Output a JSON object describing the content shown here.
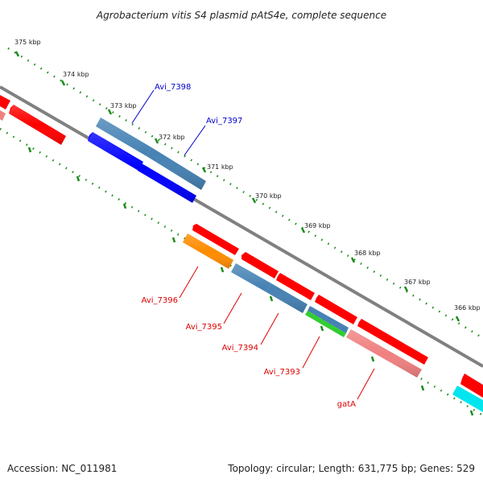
{
  "title": "Agrobacterium vitis S4 plasmid pAtS4e, complete sequence",
  "footer": {
    "accession": "Accession: NC_011981",
    "summary": "Topology: circular; Length: 631,775 bp; Genes: 529"
  },
  "scale_ticks": [
    "375 kbp",
    "374 kbp",
    "373 kbp",
    "372 kbp",
    "371 kbp",
    "370 kbp",
    "369 kbp",
    "368 kbp",
    "367 kbp",
    "366 kbp"
  ],
  "gene_labels": {
    "forward": [
      "Avi_7398",
      "Avi_7397"
    ],
    "reverse": [
      "Avi_7396",
      "Avi_7395",
      "Avi_7394",
      "Avi_7393",
      "gatA"
    ]
  },
  "colors": {
    "forward_label": "#0000cc",
    "reverse_label": "#dd0000",
    "backbone": "#808080",
    "tick": "#1a8c1a",
    "cds_red": "#ff0000",
    "cds_pink": "#f08080",
    "cds_steelblue": "#4682b4",
    "cds_blue": "#0000ff",
    "cds_orange": "#ff8c00",
    "cds_green": "#32cd32",
    "cds_cyan": "#00e5ee"
  }
}
